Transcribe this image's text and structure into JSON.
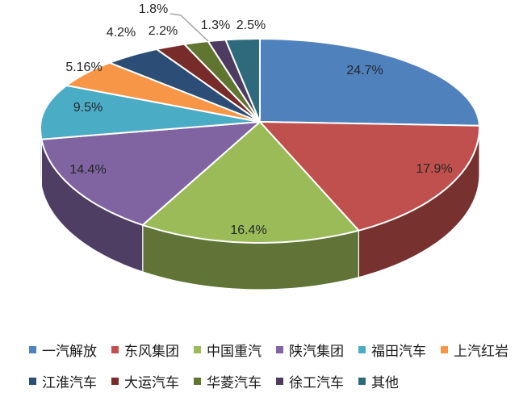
{
  "chart_data": {
    "type": "pie",
    "style": "3d",
    "title": "",
    "legend_position": "bottom",
    "background": "#FFFFFF",
    "label_color": "#262626",
    "leader_line_color": "#A6A6A6",
    "slices": [
      {
        "name": "一汽解放",
        "value": 24.7,
        "label": "24.7%",
        "color": "#4F81BD"
      },
      {
        "name": "东风集团",
        "value": 17.9,
        "label": "17.9%",
        "color": "#C0504D"
      },
      {
        "name": "中国重汽",
        "value": 16.4,
        "label": "16.4%",
        "color": "#9BBB59"
      },
      {
        "name": "陕汽集团",
        "value": 14.4,
        "label": "14.4%",
        "color": "#8064A2"
      },
      {
        "name": "福田汽车",
        "value": 9.5,
        "label": "9.5%",
        "color": "#4BACC6"
      },
      {
        "name": "上汽红岩",
        "value": 5.16,
        "label": "5.16%",
        "color": "#F79646"
      },
      {
        "name": "江淮汽车",
        "value": 4.2,
        "label": "4.2%",
        "color": "#2C4D75"
      },
      {
        "name": "大运汽车",
        "value": 2.2,
        "label": "2.2%",
        "color": "#772C2A"
      },
      {
        "name": "华菱汽车",
        "value": 1.8,
        "label": "1.8%",
        "color": "#5F7530"
      },
      {
        "name": "徐工汽车",
        "value": 1.3,
        "label": "1.3%",
        "color": "#4D3B62"
      },
      {
        "name": "其他",
        "value": 2.5,
        "label": "2.5%",
        "color": "#2E6A7C"
      }
    ]
  }
}
